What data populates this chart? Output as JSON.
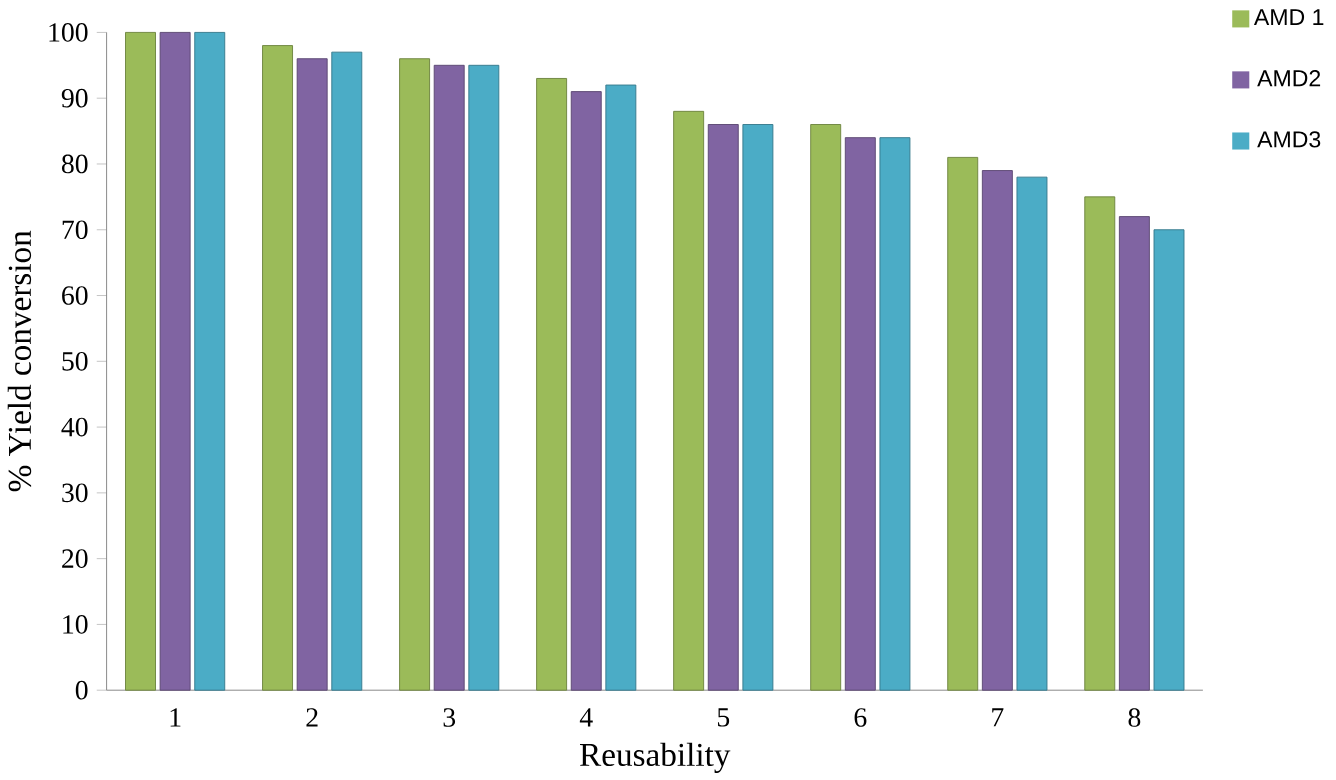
{
  "chart_data": {
    "type": "bar",
    "xlabel": "Reusability",
    "ylabel": "% Yield conversion",
    "categories": [
      "1",
      "2",
      "3",
      "4",
      "5",
      "6",
      "7",
      "8"
    ],
    "series": [
      {
        "name": "AMD 1",
        "color": "#9bbb59",
        "values": [
          100,
          98,
          96,
          93,
          88,
          86,
          81,
          75
        ]
      },
      {
        "name": "AMD2",
        "color": "#8064a2",
        "values": [
          100,
          96,
          95,
          91,
          86,
          84,
          79,
          72
        ]
      },
      {
        "name": "AMD3",
        "color": "#4bacc6",
        "values": [
          100,
          97,
          95,
          92,
          86,
          84,
          78,
          70
        ]
      }
    ],
    "ylim": [
      0,
      100
    ],
    "yticks": [
      0,
      10,
      20,
      30,
      40,
      50,
      60,
      70,
      80,
      90,
      100
    ],
    "grid": false,
    "legend": "top right"
  }
}
